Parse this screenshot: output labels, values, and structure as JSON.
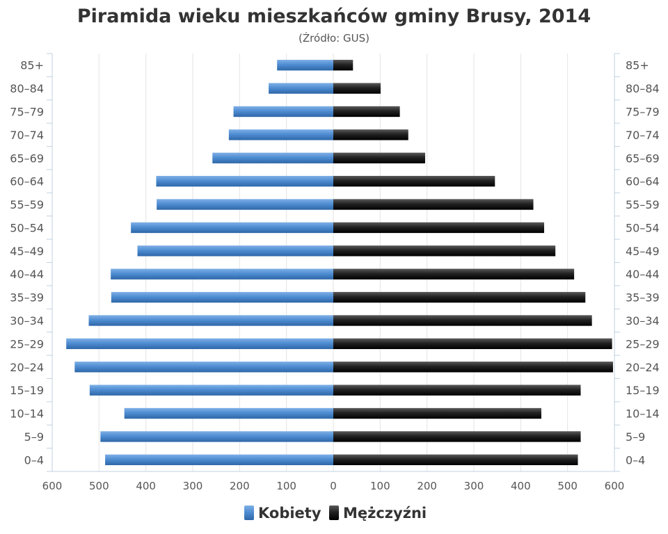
{
  "chart_data": {
    "type": "bar",
    "orientation": "horizontal",
    "layout": "population-pyramid",
    "title": "Piramida wieku mieszkańców gminy Brusy, 2014",
    "subtitle": "(Źródło: GUS)",
    "categories": [
      "0–4",
      "5–9",
      "10–14",
      "15–19",
      "20–24",
      "25–29",
      "30–34",
      "35–39",
      "40–44",
      "45–49",
      "50–54",
      "55–59",
      "60–64",
      "65–69",
      "70–74",
      "75–79",
      "80–84",
      "85+"
    ],
    "series": [
      {
        "name": "Kobiety",
        "color": "#4a86c8",
        "values": [
          487,
          497,
          446,
          520,
          552,
          570,
          522,
          474,
          475,
          418,
          432,
          377,
          378,
          258,
          223,
          213,
          138,
          120
        ]
      },
      {
        "name": "Mężczyźni",
        "color": "#1a1a1a",
        "values": [
          522,
          528,
          444,
          528,
          597,
          595,
          552,
          538,
          514,
          474,
          450,
          427,
          345,
          196,
          160,
          142,
          101,
          42
        ]
      }
    ],
    "x_tick_labels": [
      "600",
      "500",
      "400",
      "300",
      "200",
      "100",
      "0",
      "100",
      "200",
      "300",
      "400",
      "500",
      "600"
    ],
    "xlim": [
      -600,
      600
    ],
    "grid": true,
    "legend_position": "bottom-center"
  }
}
